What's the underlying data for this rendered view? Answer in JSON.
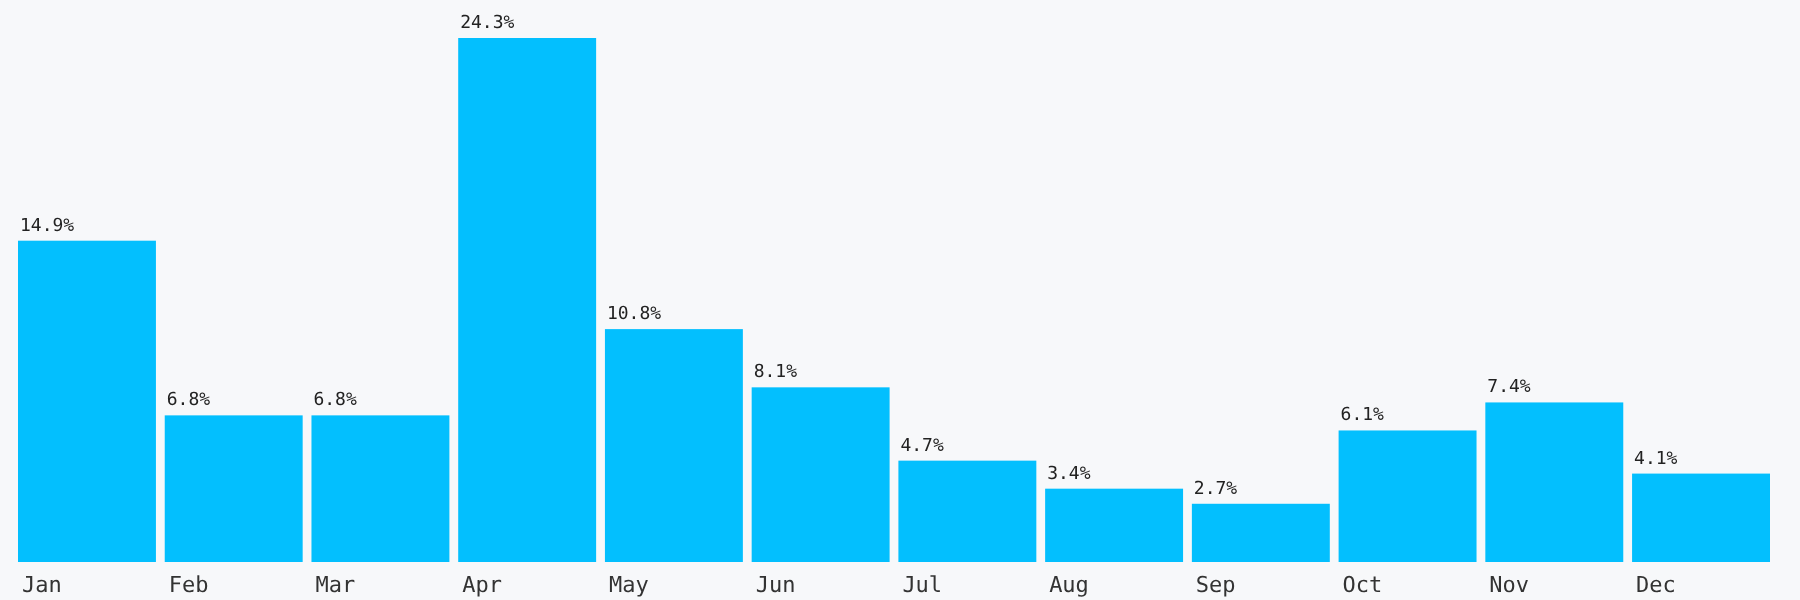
{
  "chart_data": {
    "type": "bar",
    "categories": [
      "Jan",
      "Feb",
      "Mar",
      "Apr",
      "May",
      "Jun",
      "Jul",
      "Aug",
      "Sep",
      "Oct",
      "Nov",
      "Dec"
    ],
    "values": [
      14.9,
      6.8,
      6.8,
      24.3,
      10.8,
      8.1,
      4.7,
      3.4,
      2.7,
      6.1,
      7.4,
      4.1
    ],
    "value_labels": [
      "14.9%",
      "6.8%",
      "6.8%",
      "24.3%",
      "10.8%",
      "8.1%",
      "4.7%",
      "3.4%",
      "2.7%",
      "6.1%",
      "7.4%",
      "4.1%"
    ],
    "color": "#03bffe",
    "ylim": [
      0,
      24.3
    ]
  }
}
